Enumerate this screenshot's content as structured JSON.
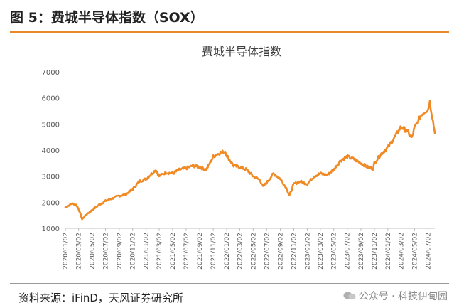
{
  "figure_title": "图 5：费城半导体指数（SOX）",
  "source_note": "资料来源：iFinD，天风证券研究所",
  "watermark": "公众号 · 科技伊甸园",
  "colors": {
    "accent": "#e8892c",
    "series": "#f08a24",
    "axis": "#bfbfbf",
    "tick_text": "#595959"
  },
  "chart_data": {
    "type": "line",
    "title": "费城半导体指数",
    "xlabel": "",
    "ylabel": "",
    "ylim": [
      1000,
      7000
    ],
    "yticks": [
      1000,
      2000,
      3000,
      4000,
      5000,
      6000,
      7000
    ],
    "xticks": [
      "2020/01/02",
      "2020/03/02",
      "2020/05/02",
      "2020/07/02",
      "2020/09/02",
      "2020/11/02",
      "2021/01/02",
      "2021/03/02",
      "2021/05/02",
      "2021/07/02",
      "2021/09/02",
      "2021/11/02",
      "2022/01/02",
      "2022/03/02",
      "2022/05/02",
      "2022/07/02",
      "2022/09/02",
      "2022/11/02",
      "2023/01/02",
      "2023/03/02",
      "2023/05/02",
      "2023/07/02",
      "2023/09/02",
      "2023/11/02",
      "2024/01/02",
      "2024/03/02",
      "2024/05/02",
      "2024/07/02"
    ],
    "grid": false,
    "legend": "none",
    "series": [
      {
        "x": [
          "2020/01/02",
          "2020/02/02",
          "2020/02/20",
          "2020/03/02",
          "2020/03/18",
          "2020/04/02",
          "2020/05/02",
          "2020/06/02",
          "2020/07/02",
          "2020/08/02",
          "2020/09/02",
          "2020/10/02",
          "2020/11/02",
          "2020/12/02",
          "2021/01/02",
          "2021/02/15",
          "2021/03/02",
          "2021/04/02",
          "2021/05/02",
          "2021/06/02",
          "2021/07/02",
          "2021/08/02",
          "2021/09/02",
          "2021/10/02",
          "2021/11/02",
          "2021/12/02",
          "2021/12/27",
          "2022/01/02",
          "2022/02/02",
          "2022/03/02",
          "2022/04/02",
          "2022/05/02",
          "2022/06/02",
          "2022/06/16",
          "2022/07/02",
          "2022/08/02",
          "2022/09/02",
          "2022/10/02",
          "2022/10/13",
          "2022/11/02",
          "2022/12/02",
          "2023/01/02",
          "2023/02/02",
          "2023/03/02",
          "2023/04/02",
          "2023/05/02",
          "2023/06/02",
          "2023/07/02",
          "2023/08/02",
          "2023/09/02",
          "2023/10/02",
          "2023/10/27",
          "2023/11/02",
          "2023/12/02",
          "2024/01/02",
          "2024/02/02",
          "2024/03/02",
          "2024/04/02",
          "2024/04/19",
          "2024/05/02",
          "2024/06/02",
          "2024/06/20",
          "2024/07/02",
          "2024/07/10",
          "2024/07/25",
          "2024/08/02"
        ],
        "values": [
          1800,
          1950,
          1900,
          1750,
          1350,
          1500,
          1700,
          1900,
          2050,
          2150,
          2250,
          2300,
          2500,
          2800,
          2900,
          3250,
          3000,
          3150,
          3100,
          3250,
          3300,
          3400,
          3350,
          3250,
          3750,
          3900,
          3950,
          3800,
          3400,
          3350,
          3250,
          3000,
          2850,
          2600,
          2750,
          3100,
          2900,
          2500,
          2250,
          2700,
          2800,
          2700,
          3000,
          3100,
          3050,
          3250,
          3600,
          3750,
          3650,
          3500,
          3350,
          3300,
          3500,
          3850,
          4100,
          4500,
          4900,
          4700,
          4450,
          4850,
          5350,
          5500,
          5550,
          5850,
          5100,
          4650
        ]
      }
    ]
  }
}
